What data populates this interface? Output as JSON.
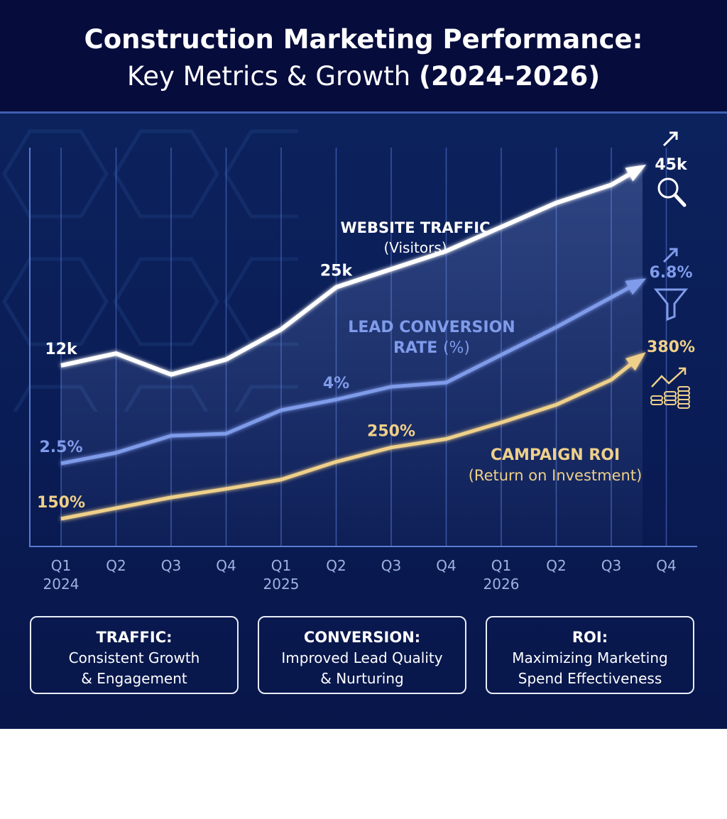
{
  "title": {
    "line1": "Construction Marketing Performance:",
    "line2_light": "Key Metrics & Growth",
    "line2_bold": "(2024-2026)"
  },
  "chart_data": {
    "type": "line",
    "categories": [
      "Q1 2024",
      "Q2",
      "Q3",
      "Q4",
      "Q1 2025",
      "Q2",
      "Q3",
      "Q4",
      "Q1 2026",
      "Q2",
      "Q3",
      "Q4"
    ],
    "tick_labels": [
      [
        "Q1",
        "2024"
      ],
      [
        "Q2",
        ""
      ],
      [
        "Q3",
        ""
      ],
      [
        "Q4",
        ""
      ],
      [
        "Q1",
        "2025"
      ],
      [
        "Q2",
        ""
      ],
      [
        "Q3",
        ""
      ],
      [
        "Q4",
        ""
      ],
      [
        "Q1",
        "2026"
      ],
      [
        "Q2",
        ""
      ],
      [
        "Q3",
        ""
      ],
      [
        "Q4",
        ""
      ]
    ],
    "grid": "vertical",
    "series": [
      {
        "name": "WEBSITE TRAFFIC",
        "subtitle": "(Visitors)",
        "unit": "k visitors",
        "color": "#ffffff",
        "icon": "magnifier-icon",
        "values": [
          12,
          14,
          10.5,
          13,
          18,
          25,
          28,
          31,
          35,
          39,
          42,
          45
        ],
        "labels": [
          {
            "i": 0,
            "text": "12k"
          },
          {
            "i": 5,
            "text": "25k"
          },
          {
            "i": 11,
            "text": "45k"
          }
        ]
      },
      {
        "name": "LEAD CONVERSION",
        "name2": "RATE",
        "subtitle": "(%)",
        "unit": "%",
        "color": "#7f9bea",
        "icon": "funnel-icon",
        "values": [
          2.5,
          2.75,
          3.15,
          3.2,
          3.75,
          4.0,
          4.3,
          4.4,
          5.05,
          5.7,
          6.4,
          6.8
        ],
        "labels": [
          {
            "i": 0,
            "text": "2.5%"
          },
          {
            "i": 5,
            "text": "4%"
          },
          {
            "i": 11,
            "text": "6.8%"
          }
        ]
      },
      {
        "name": "CAMPAIGN ROI",
        "subtitle": "(Return on Investment)",
        "unit": "%",
        "color": "#efd08a",
        "icon": "coins-growth-icon",
        "values": [
          150,
          165,
          180,
          192,
          205,
          230,
          250,
          262,
          285,
          310,
          345,
          380
        ],
        "labels": [
          {
            "i": 0,
            "text": "150%"
          },
          {
            "i": 6,
            "text": "250%"
          },
          {
            "i": 11,
            "text": "380%"
          }
        ]
      }
    ]
  },
  "cards": [
    {
      "title": "TRAFFIC:",
      "line1": "Consistent Growth",
      "line2": "& Engagement"
    },
    {
      "title": "CONVERSION:",
      "line1": "Improved Lead Quality",
      "line2": "& Nurturing"
    },
    {
      "title": "ROI:",
      "line1": "Maximizing Marketing",
      "line2": "Spend Effectiveness"
    }
  ]
}
